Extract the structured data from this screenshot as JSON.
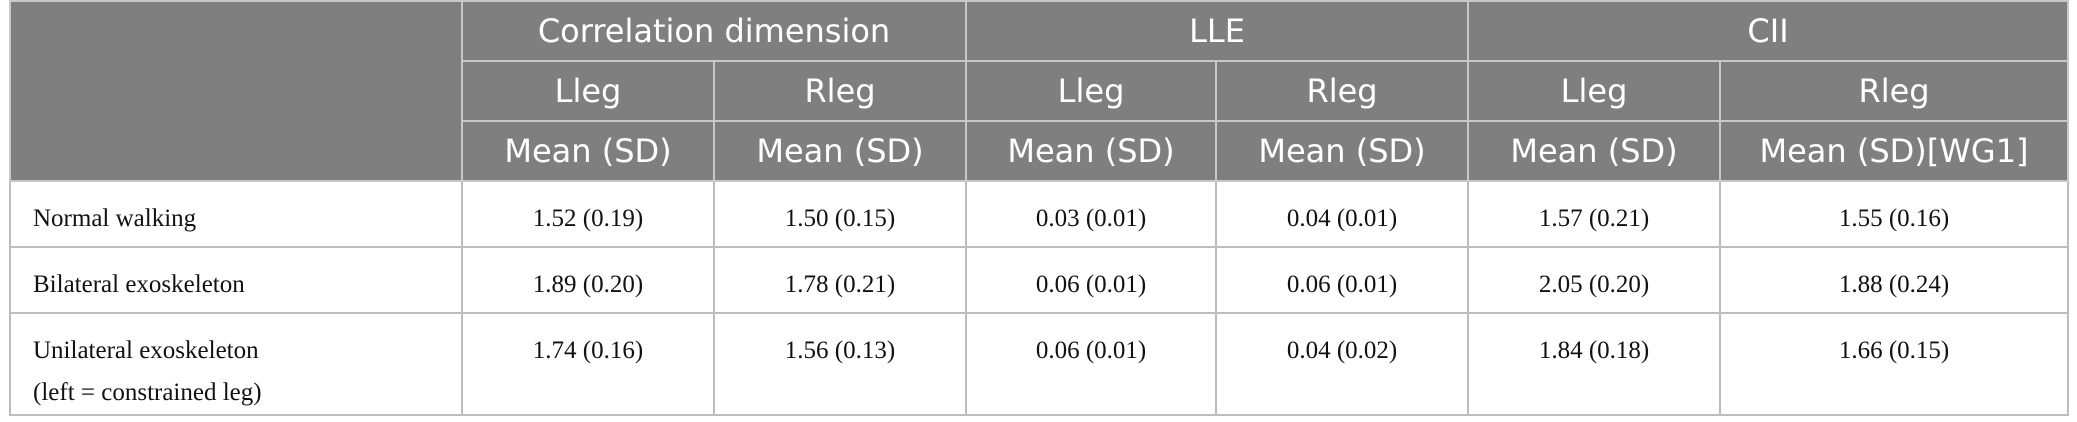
{
  "table": {
    "groups": [
      "Correlation dimension",
      "LLE",
      "CII"
    ],
    "legs": [
      "Lleg",
      "Rleg",
      "Lleg",
      "Rleg",
      "Lleg",
      "Rleg"
    ],
    "stats": [
      "Mean (SD)",
      "Mean (SD)",
      "Mean (SD)",
      "Mean (SD)",
      "Mean (SD)",
      "Mean (SD)[WG1]"
    ],
    "rows": [
      [
        "Normal walking",
        "1.52 (0.19)",
        "1.50 (0.15)",
        "0.03 (0.01)",
        "0.04 (0.01)",
        "1.57 (0.21)",
        "1.55 (0.16)"
      ],
      [
        "Bilateral exoskeleton",
        "1.89 (0.20)",
        "1.78 (0.21)",
        "0.06 (0.01)",
        "0.06 (0.01)",
        "2.05 (0.20)",
        "1.88 (0.24)"
      ],
      [
        "Unilateral exoskeleton\n(left = constrained leg)",
        "1.74 (0.16)",
        "1.56 (0.13)",
        "0.06 (0.01)",
        "0.04 (0.02)",
        "1.84 (0.18)",
        "1.66 (0.15)"
      ]
    ]
  }
}
